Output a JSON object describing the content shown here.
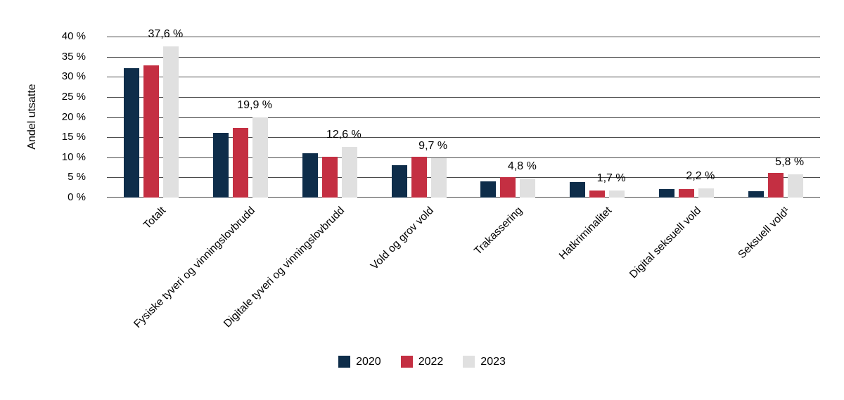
{
  "figure": {
    "y_axis_title": "Andel utsatte"
  },
  "chart_data": {
    "type": "bar",
    "title": "",
    "xlabel": "",
    "ylabel": "Andel utsatte",
    "ylim": [
      0,
      40
    ],
    "y_tick_step": 5,
    "y_tick_labels": [
      "40 %",
      "35 %",
      "30 %",
      "25 %",
      "20 %",
      "15 %",
      "10 %",
      "5 %",
      "0 %"
    ],
    "grid": true,
    "legend_position": "bottom-center",
    "categories": [
      "Totalt",
      "Fysiske tyveri og vinningslovbrudd",
      "Digitale tyveri og vinningslovbrudd",
      "Vold og grov vold",
      "Trakassering",
      "Hatkriminalitet",
      "Digital seksuell vold",
      "Seksuell vold¹"
    ],
    "series": [
      {
        "name": "2020",
        "color": "#0E2D4A",
        "values": [
          32.1,
          16.0,
          11.0,
          8.0,
          4.0,
          3.8,
          2.1,
          1.6
        ]
      },
      {
        "name": "2022",
        "color": "#C42F42",
        "values": [
          32.8,
          17.3,
          10.2,
          10.1,
          5.0,
          1.8,
          2.1,
          6.1
        ]
      },
      {
        "name": "2023",
        "color": "#E0E0E0",
        "values": [
          37.6,
          19.9,
          12.6,
          9.7,
          4.8,
          1.7,
          2.2,
          5.8
        ],
        "data_labels": [
          "37,6 %",
          "19,9 %",
          "12,6 %",
          "9,7 %",
          "4,8 %",
          "1,7 %",
          "2,2 %",
          "5,8 %"
        ]
      }
    ],
    "colors": {
      "gridline": "#4a4a4a",
      "text": "#000000",
      "background": "#ffffff"
    }
  }
}
